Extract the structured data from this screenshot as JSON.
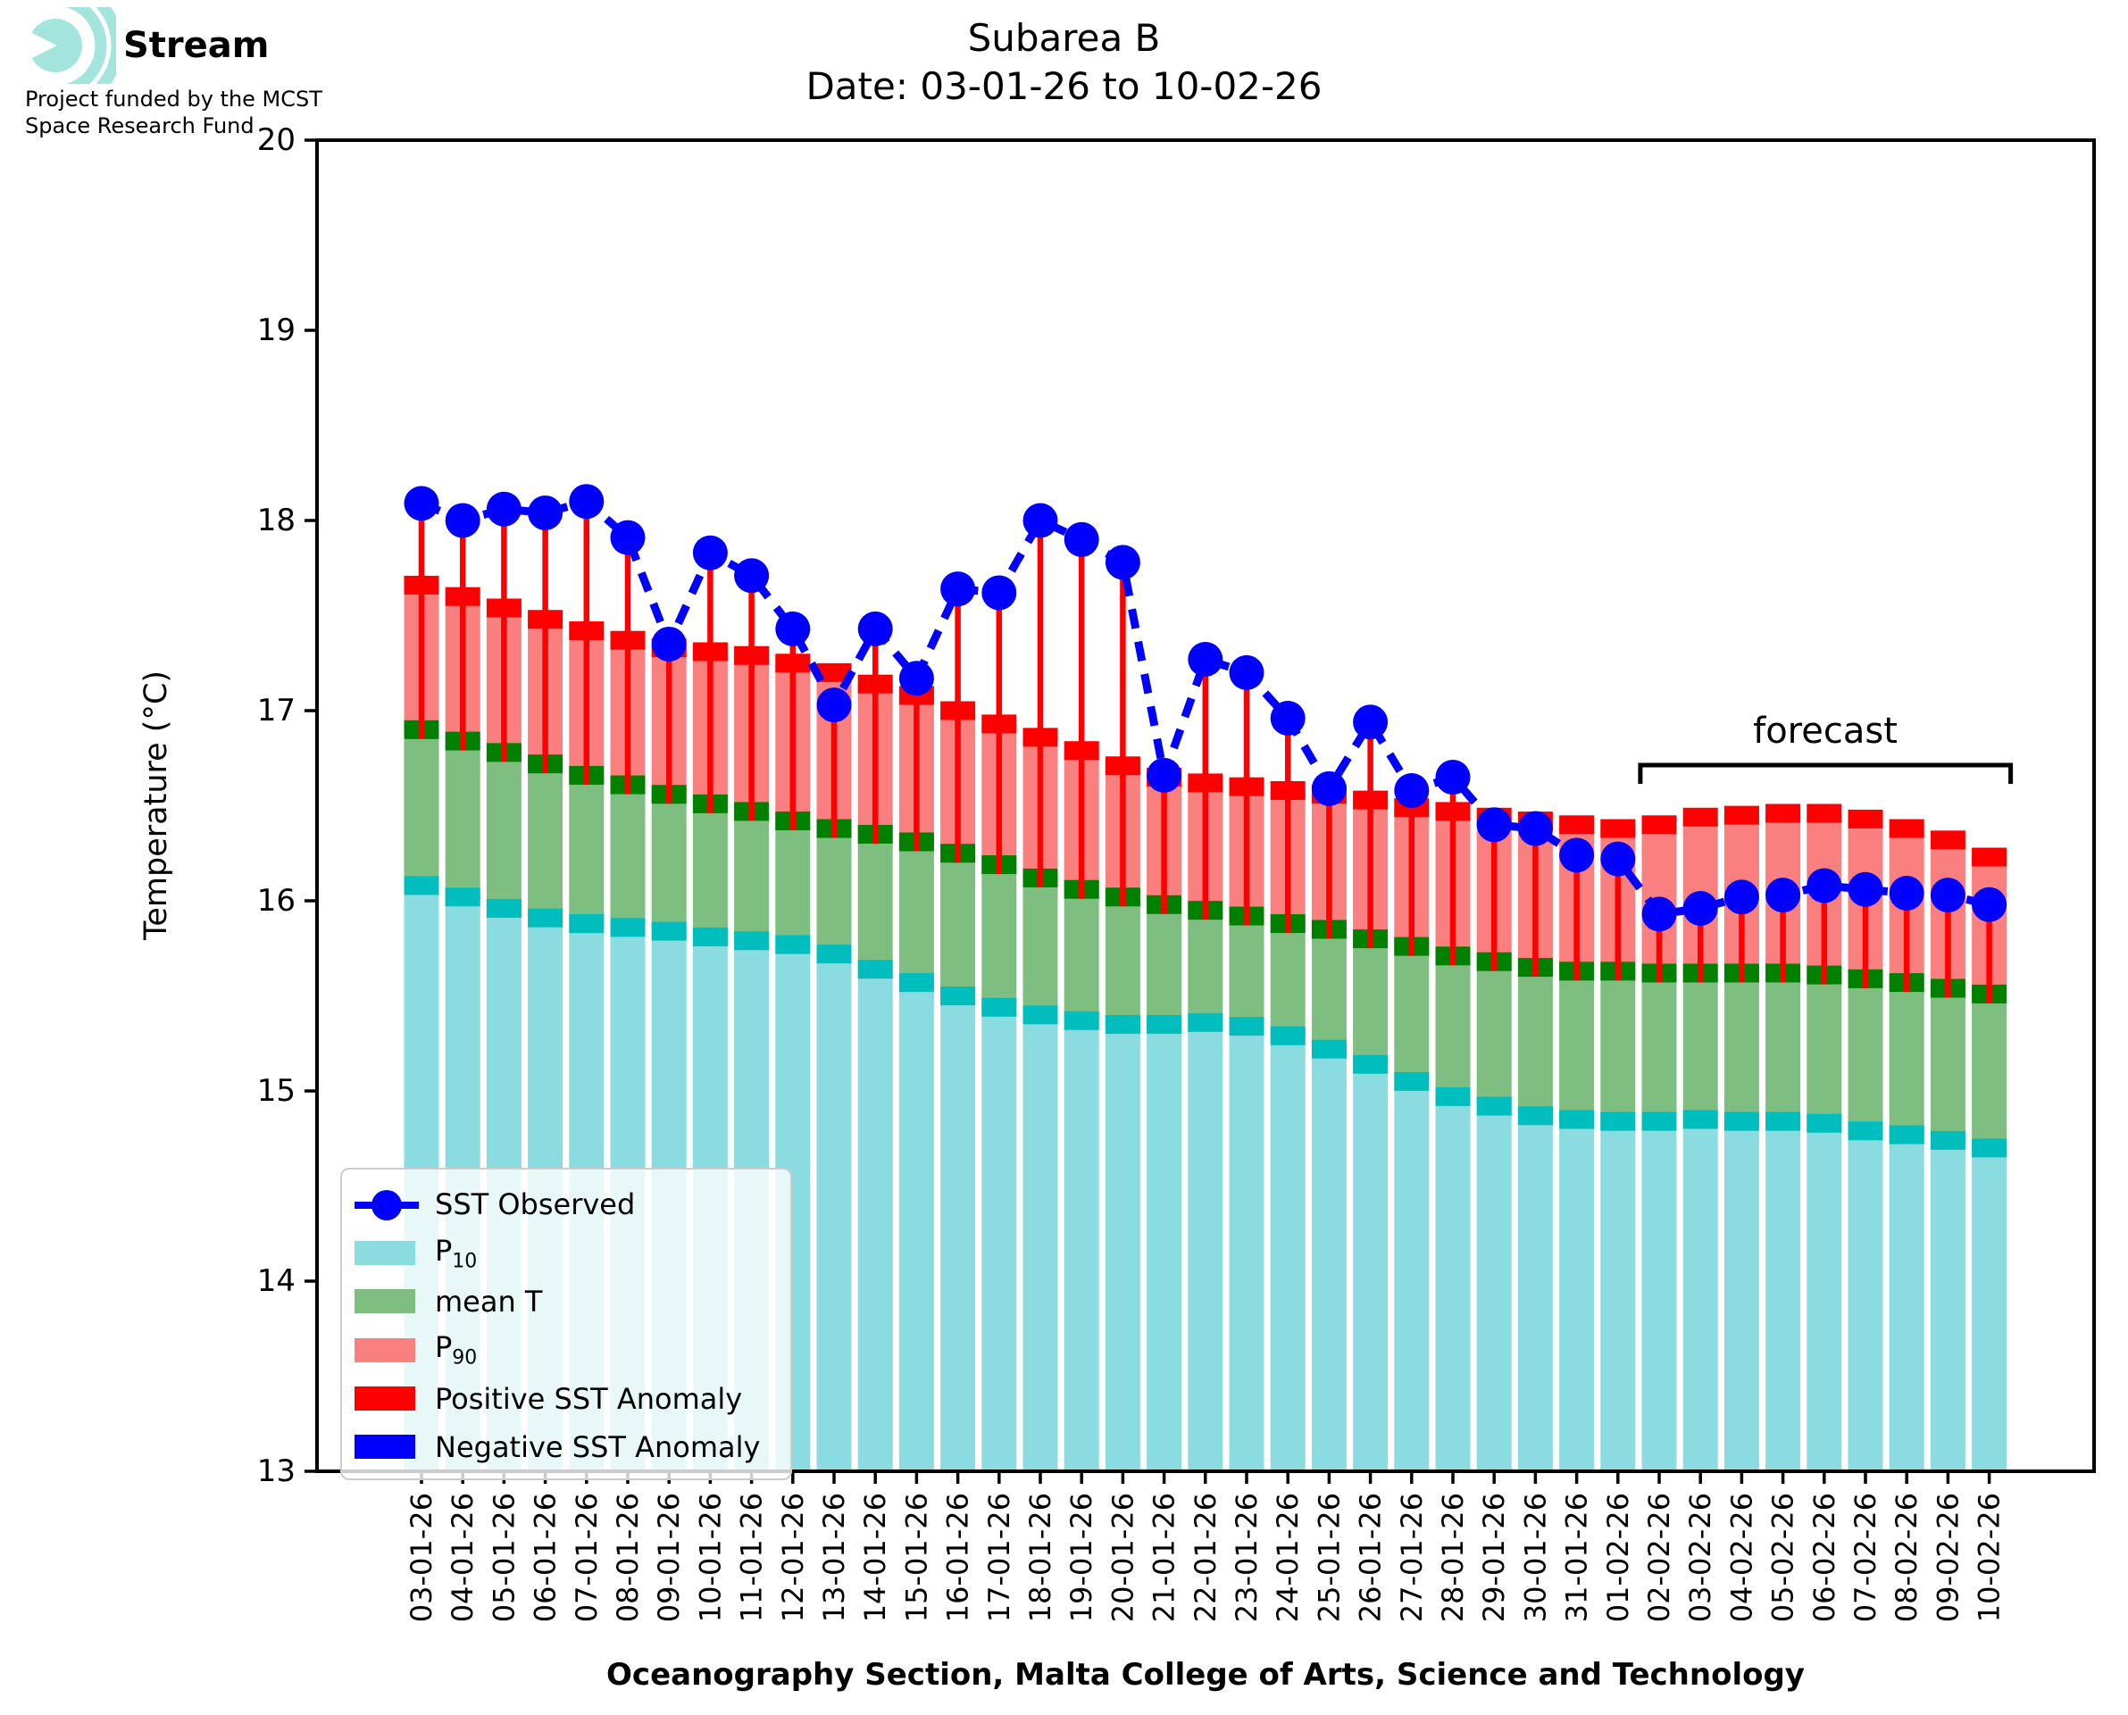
{
  "logo": {
    "brand": "Stream",
    "funding_line1": "Project funded by the MCST",
    "funding_line2": "Space Research Fund"
  },
  "title": {
    "line1": "Subarea B",
    "line2": "Date: 03-01-26 to 10-02-26"
  },
  "axes": {
    "ylabel": "Temperature (°C)",
    "yticks": [
      13,
      14,
      15,
      16,
      17,
      18,
      19,
      20
    ],
    "ylim": [
      13,
      20
    ]
  },
  "annotations": {
    "forecast_label": "forecast"
  },
  "footer": "Oceanography Section, Malta College of Arts, Science and Technology",
  "colors": {
    "p10_fill": "#8BDCE0",
    "p10_cap": "#00BDBE",
    "mean_fill": "#7FBE81",
    "mean_cap": "#008000",
    "p90_fill": "#FA8080",
    "p90_cap": "#FF0000",
    "positive_anomaly": "#FF0000",
    "negative_anomaly": "#0000FF",
    "observed": "#0000FF",
    "logo_teal": "#A3E4DD",
    "axis": "#000000"
  },
  "legend": {
    "items": [
      {
        "label": "SST Observed",
        "sub": "",
        "type": "line-dot",
        "color": "#0000FF"
      },
      {
        "label": "P",
        "sub": "10",
        "type": "patch",
        "color": "#8BDCE0"
      },
      {
        "label": "mean T",
        "sub": "",
        "type": "patch",
        "color": "#7FBE81"
      },
      {
        "label": "P",
        "sub": "90",
        "type": "patch",
        "color": "#FA8080"
      },
      {
        "label": "Positive SST Anomaly",
        "sub": "",
        "type": "patch",
        "color": "#FF0000"
      },
      {
        "label": "Negative SST Anomaly",
        "sub": "",
        "type": "patch",
        "color": "#0000FF"
      }
    ]
  },
  "chart_data": {
    "type": "bar+line",
    "description": "Stacked percentile bands (P10 / mean T / P90) per day with red positive-anomaly stems up to observed SST dots; dashed blue line connects observed SST.",
    "title": "Subarea B",
    "subtitle": "Date: 03-01-26 to 10-02-26",
    "xlabel": "",
    "ylabel": "Temperature (°C)",
    "ylim": [
      13,
      20
    ],
    "grid": false,
    "legend_position": "lower-left",
    "forecast_start_category": "02-02-26",
    "categories": [
      "03-01-26",
      "04-01-26",
      "05-01-26",
      "06-01-26",
      "07-01-26",
      "08-01-26",
      "09-01-26",
      "10-01-26",
      "11-01-26",
      "12-01-26",
      "13-01-26",
      "14-01-26",
      "15-01-26",
      "16-01-26",
      "17-01-26",
      "18-01-26",
      "19-01-26",
      "20-01-26",
      "21-01-26",
      "22-01-26",
      "23-01-26",
      "24-01-26",
      "25-01-26",
      "26-01-26",
      "27-01-26",
      "28-01-26",
      "29-01-26",
      "30-01-26",
      "31-01-26",
      "01-02-26",
      "02-02-26",
      "03-02-26",
      "04-02-26",
      "05-02-26",
      "06-02-26",
      "07-02-26",
      "08-02-26",
      "09-02-26",
      "10-02-26"
    ],
    "series": [
      {
        "name": "P10",
        "values": [
          16.08,
          16.02,
          15.96,
          15.91,
          15.88,
          15.86,
          15.84,
          15.81,
          15.79,
          15.77,
          15.72,
          15.64,
          15.57,
          15.5,
          15.44,
          15.4,
          15.37,
          15.35,
          15.35,
          15.36,
          15.34,
          15.29,
          15.22,
          15.14,
          15.05,
          14.97,
          14.92,
          14.87,
          14.85,
          14.84,
          14.84,
          14.85,
          14.84,
          14.84,
          14.83,
          14.79,
          14.77,
          14.74,
          14.7
        ]
      },
      {
        "name": "mean T",
        "values": [
          16.9,
          16.84,
          16.78,
          16.72,
          16.66,
          16.61,
          16.56,
          16.51,
          16.47,
          16.42,
          16.38,
          16.35,
          16.31,
          16.25,
          16.19,
          16.12,
          16.06,
          16.02,
          15.98,
          15.95,
          15.92,
          15.88,
          15.85,
          15.8,
          15.76,
          15.71,
          15.68,
          15.65,
          15.63,
          15.63,
          15.62,
          15.62,
          15.62,
          15.62,
          15.61,
          15.59,
          15.57,
          15.54,
          15.51
        ]
      },
      {
        "name": "P90",
        "values": [
          17.66,
          17.6,
          17.54,
          17.48,
          17.42,
          17.37,
          17.33,
          17.31,
          17.29,
          17.25,
          17.2,
          17.14,
          17.08,
          17.0,
          16.93,
          16.86,
          16.79,
          16.71,
          16.65,
          16.62,
          16.6,
          16.58,
          16.56,
          16.53,
          16.49,
          16.47,
          16.44,
          16.42,
          16.4,
          16.38,
          16.4,
          16.44,
          16.45,
          16.46,
          16.46,
          16.43,
          16.38,
          16.32,
          16.23
        ]
      },
      {
        "name": "SST Observed",
        "values": [
          18.09,
          18.0,
          18.06,
          18.04,
          18.1,
          17.91,
          17.35,
          17.83,
          17.71,
          17.43,
          17.03,
          17.43,
          17.17,
          17.64,
          17.62,
          18.0,
          17.9,
          17.78,
          16.66,
          17.27,
          17.2,
          16.96,
          16.59,
          16.94,
          16.58,
          16.65,
          16.4,
          16.38,
          16.24,
          16.22,
          15.93,
          15.96,
          16.02,
          16.03,
          16.08,
          16.06,
          16.04,
          16.03,
          15.98
        ]
      }
    ]
  }
}
